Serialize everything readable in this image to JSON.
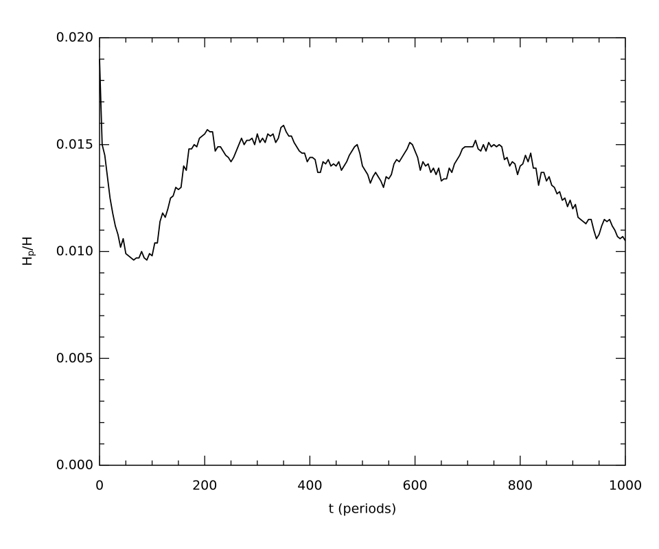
{
  "chart_data": {
    "type": "line",
    "xlabel": "t (periods)",
    "ylabel_parts": [
      "H",
      "p",
      "/H"
    ],
    "xlim": [
      0,
      1000
    ],
    "ylim": [
      0,
      0.02
    ],
    "xticks": [
      0,
      200,
      400,
      600,
      800,
      1000
    ],
    "yticks": [
      {
        "value": 0,
        "label": "0.000"
      },
      {
        "value": 0.005,
        "label": "0.005"
      },
      {
        "value": 0.01,
        "label": "0.010"
      },
      {
        "value": 0.015,
        "label": "0.015"
      },
      {
        "value": 0.02,
        "label": "0.020"
      }
    ],
    "xminorticks": [
      50,
      100,
      150,
      250,
      300,
      350,
      450,
      500,
      550,
      650,
      700,
      750,
      850,
      900,
      950
    ],
    "yminorticks": [
      0.001,
      0.002,
      0.003,
      0.004,
      0.006,
      0.007,
      0.008,
      0.009,
      0.011,
      0.012,
      0.013,
      0.014,
      0.016,
      0.017,
      0.018,
      0.019
    ],
    "color": "#000000",
    "x": [
      0,
      5,
      10,
      15,
      20,
      25,
      30,
      35,
      40,
      45,
      50,
      55,
      60,
      65,
      70,
      75,
      80,
      85,
      90,
      95,
      100,
      105,
      110,
      115,
      120,
      125,
      130,
      135,
      140,
      145,
      150,
      155,
      160,
      165,
      170,
      175,
      180,
      185,
      190,
      195,
      200,
      205,
      210,
      215,
      220,
      225,
      230,
      235,
      240,
      245,
      250,
      255,
      260,
      265,
      270,
      275,
      280,
      285,
      290,
      295,
      300,
      305,
      310,
      315,
      320,
      325,
      330,
      335,
      340,
      345,
      350,
      355,
      360,
      365,
      370,
      375,
      380,
      385,
      390,
      395,
      400,
      405,
      410,
      415,
      420,
      425,
      430,
      435,
      440,
      445,
      450,
      455,
      460,
      465,
      470,
      475,
      480,
      485,
      490,
      495,
      500,
      505,
      510,
      515,
      520,
      525,
      530,
      535,
      540,
      545,
      550,
      555,
      560,
      565,
      570,
      575,
      580,
      585,
      590,
      595,
      600,
      605,
      610,
      615,
      620,
      625,
      630,
      635,
      640,
      645,
      650,
      655,
      660,
      665,
      670,
      675,
      680,
      685,
      690,
      695,
      700,
      705,
      710,
      715,
      720,
      725,
      730,
      735,
      740,
      745,
      750,
      755,
      760,
      765,
      770,
      775,
      780,
      785,
      790,
      795,
      800,
      805,
      810,
      815,
      820,
      825,
      830,
      835,
      840,
      845,
      850,
      855,
      860,
      865,
      870,
      875,
      880,
      885,
      890,
      895,
      900,
      905,
      910,
      915,
      920,
      925,
      930,
      935,
      940,
      945,
      950,
      955,
      960,
      965,
      970,
      975,
      980,
      985,
      990,
      995,
      1000
    ],
    "values": [
      0.019,
      0.015,
      0.0145,
      0.0135,
      0.0125,
      0.0118,
      0.0112,
      0.0108,
      0.0102,
      0.0106,
      0.0099,
      0.0098,
      0.0097,
      0.0096,
      0.0097,
      0.0097,
      0.01,
      0.0097,
      0.0096,
      0.0099,
      0.0098,
      0.0104,
      0.0104,
      0.0114,
      0.0118,
      0.0116,
      0.012,
      0.0125,
      0.0126,
      0.013,
      0.0129,
      0.013,
      0.014,
      0.0138,
      0.0148,
      0.0148,
      0.015,
      0.0149,
      0.0153,
      0.0154,
      0.0155,
      0.0157,
      0.0156,
      0.0156,
      0.0147,
      0.0149,
      0.0149,
      0.0147,
      0.0145,
      0.0144,
      0.0142,
      0.0144,
      0.0147,
      0.015,
      0.0153,
      0.015,
      0.0152,
      0.0152,
      0.0153,
      0.015,
      0.0155,
      0.0151,
      0.0153,
      0.0151,
      0.0155,
      0.0154,
      0.0155,
      0.0151,
      0.0153,
      0.0158,
      0.0159,
      0.0156,
      0.0154,
      0.0154,
      0.0151,
      0.0149,
      0.0147,
      0.0146,
      0.0146,
      0.0142,
      0.0144,
      0.0144,
      0.0143,
      0.0137,
      0.0137,
      0.0142,
      0.0141,
      0.0143,
      0.014,
      0.0141,
      0.014,
      0.0142,
      0.0138,
      0.014,
      0.0142,
      0.0145,
      0.0147,
      0.0149,
      0.015,
      0.0146,
      0.014,
      0.0138,
      0.0136,
      0.0132,
      0.0135,
      0.0137,
      0.0135,
      0.0133,
      0.013,
      0.0135,
      0.0134,
      0.0136,
      0.0141,
      0.0143,
      0.0142,
      0.0144,
      0.0146,
      0.0148,
      0.0151,
      0.015,
      0.0147,
      0.0144,
      0.0138,
      0.0142,
      0.014,
      0.0141,
      0.0137,
      0.0139,
      0.0136,
      0.0139,
      0.0133,
      0.0134,
      0.0134,
      0.0139,
      0.0137,
      0.0141,
      0.0143,
      0.0145,
      0.0148,
      0.0149,
      0.0149,
      0.0149,
      0.0149,
      0.0152,
      0.0148,
      0.0147,
      0.015,
      0.0147,
      0.0151,
      0.0149,
      0.015,
      0.0149,
      0.015,
      0.0149,
      0.0143,
      0.0144,
      0.014,
      0.0142,
      0.0141,
      0.0136,
      0.014,
      0.0141,
      0.0145,
      0.0142,
      0.0146,
      0.0139,
      0.0139,
      0.0131,
      0.0137,
      0.0137,
      0.0133,
      0.0135,
      0.0131,
      0.013,
      0.0127,
      0.0128,
      0.0124,
      0.0125,
      0.0121,
      0.0124,
      0.012,
      0.0122,
      0.0116,
      0.0115,
      0.0114,
      0.0113,
      0.0115,
      0.0115,
      0.011,
      0.0106,
      0.0108,
      0.0112,
      0.0115,
      0.0114,
      0.0115,
      0.0112,
      0.011,
      0.0107,
      0.0106,
      0.0107,
      0.0105
    ]
  }
}
